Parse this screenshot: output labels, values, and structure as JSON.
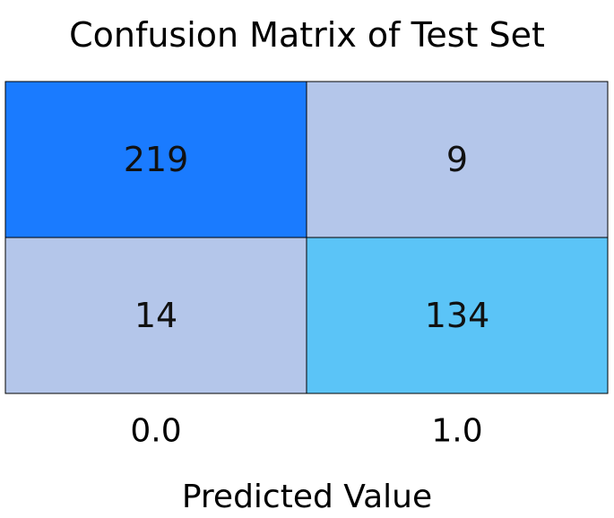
{
  "chart_data": {
    "type": "heatmap",
    "title": "Confusion Matrix of Test Set",
    "xlabel": "Predicted Value",
    "ylabel": "",
    "x_tick_labels": [
      "0.0",
      "1.0"
    ],
    "y_tick_labels": [],
    "matrix": [
      [
        219,
        9
      ],
      [
        14,
        134
      ]
    ],
    "cell_colors": [
      [
        "#1a7bff",
        "#b4c6ea"
      ],
      [
        "#b4c6ea",
        "#5bc4f7"
      ]
    ],
    "grid": true,
    "legend": "none"
  }
}
